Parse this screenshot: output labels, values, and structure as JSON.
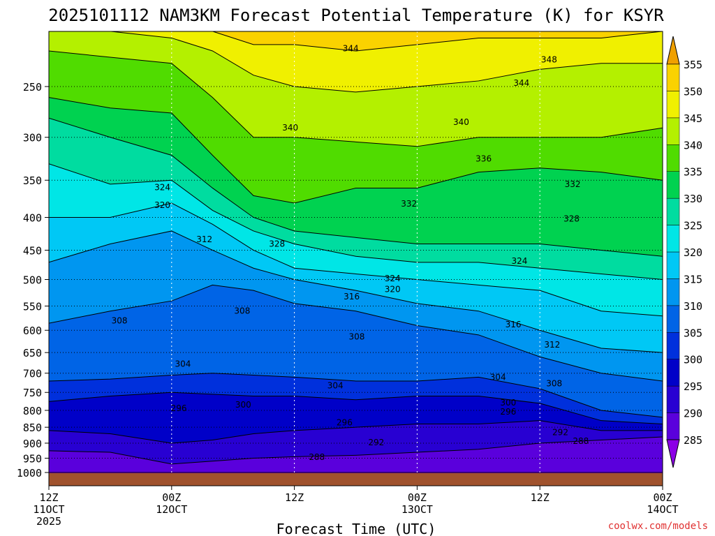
{
  "chart_data": {
    "type": "heatmap",
    "title": "2025101112 NAM3KM Forecast Potential Temperature (K) for KSYR",
    "xlabel": "Forecast Time (UTC)",
    "ylabel": "",
    "credit": "coolwx.com/models",
    "x_ticks": [
      {
        "hours": 0,
        "l1": "12Z",
        "l2": "11OCT",
        "l3": "2025"
      },
      {
        "hours": 12,
        "l1": "00Z",
        "l2": "12OCT",
        "l3": ""
      },
      {
        "hours": 24,
        "l1": "12Z",
        "l2": "",
        "l3": ""
      },
      {
        "hours": 36,
        "l1": "00Z",
        "l2": "13OCT",
        "l3": ""
      },
      {
        "hours": 48,
        "l1": "12Z",
        "l2": "",
        "l3": ""
      },
      {
        "hours": 60,
        "l1": "00Z",
        "l2": "14OCT",
        "l3": ""
      }
    ],
    "xlim": [
      0,
      60
    ],
    "y_ticks": [
      250,
      300,
      350,
      400,
      450,
      500,
      550,
      600,
      650,
      700,
      750,
      800,
      850,
      900,
      950,
      1000
    ],
    "ylim": [
      1030,
      200
    ],
    "colorbar": {
      "levels": [
        285,
        290,
        295,
        300,
        305,
        310,
        315,
        320,
        325,
        330,
        335,
        340,
        345,
        350,
        355
      ],
      "colors": [
        "#8c00e6",
        "#5a00dc",
        "#2800d2",
        "#0000c8",
        "#0030dc",
        "#0064e6",
        "#0096f0",
        "#00c8f5",
        "#00e6e6",
        "#00dca0",
        "#00d250",
        "#50dc00",
        "#b4f000",
        "#f0f000",
        "#fad200",
        "#f0a000"
      ]
    },
    "contour_labels": [
      {
        "value": 344,
        "hours": 29.5,
        "p": 218
      },
      {
        "value": 348,
        "hours": 48.9,
        "p": 227
      },
      {
        "value": 344,
        "hours": 46.2,
        "p": 247
      },
      {
        "value": 340,
        "hours": 23.6,
        "p": 290
      },
      {
        "value": 340,
        "hours": 40.3,
        "p": 284
      },
      {
        "value": 336,
        "hours": 42.5,
        "p": 324
      },
      {
        "value": 332,
        "hours": 51.2,
        "p": 355
      },
      {
        "value": 332,
        "hours": 35.2,
        "p": 381
      },
      {
        "value": 328,
        "hours": 51.1,
        "p": 402
      },
      {
        "value": 324,
        "hours": 11.1,
        "p": 359
      },
      {
        "value": 320,
        "hours": 11.1,
        "p": 383
      },
      {
        "value": 312,
        "hours": 15.2,
        "p": 433
      },
      {
        "value": 328,
        "hours": 22.3,
        "p": 440
      },
      {
        "value": 324,
        "hours": 46.0,
        "p": 468
      },
      {
        "value": 324,
        "hours": 33.6,
        "p": 498
      },
      {
        "value": 320,
        "hours": 33.6,
        "p": 518
      },
      {
        "value": 316,
        "hours": 29.6,
        "p": 532
      },
      {
        "value": 308,
        "hours": 18.9,
        "p": 560
      },
      {
        "value": 308,
        "hours": 6.9,
        "p": 580
      },
      {
        "value": 316,
        "hours": 45.4,
        "p": 588
      },
      {
        "value": 308,
        "hours": 30.1,
        "p": 614
      },
      {
        "value": 312,
        "hours": 49.2,
        "p": 632
      },
      {
        "value": 304,
        "hours": 13.1,
        "p": 677
      },
      {
        "value": 304,
        "hours": 43.9,
        "p": 710
      },
      {
        "value": 308,
        "hours": 49.4,
        "p": 726
      },
      {
        "value": 304,
        "hours": 28.0,
        "p": 732
      },
      {
        "value": 300,
        "hours": 19.0,
        "p": 784
      },
      {
        "value": 300,
        "hours": 44.9,
        "p": 778
      },
      {
        "value": 296,
        "hours": 12.7,
        "p": 794
      },
      {
        "value": 296,
        "hours": 44.9,
        "p": 804
      },
      {
        "value": 296,
        "hours": 28.9,
        "p": 836
      },
      {
        "value": 292,
        "hours": 50.0,
        "p": 866
      },
      {
        "value": 292,
        "hours": 32.0,
        "p": 898
      },
      {
        "value": 288,
        "hours": 52.0,
        "p": 893
      },
      {
        "value": 288,
        "hours": 26.2,
        "p": 946
      }
    ]
  }
}
